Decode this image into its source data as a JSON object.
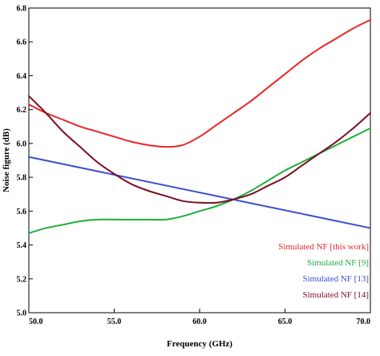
{
  "chart_data": {
    "type": "line",
    "xlabel": "Frequency (GHz)",
    "ylabel": "Noise figure (dB)",
    "xlim": [
      50.0,
      70.0
    ],
    "ylim": [
      5.0,
      6.8
    ],
    "x_ticks": [
      "50.0",
      "55.0",
      "60.0",
      "65.0",
      "70.0"
    ],
    "x_tick_values": [
      50,
      55,
      60,
      65,
      70
    ],
    "y_ticks": [
      "5.0",
      "5.2",
      "5.4",
      "5.6",
      "5.8",
      "6.0",
      "6.2",
      "6.4",
      "6.6",
      "6.8"
    ],
    "y_tick_values": [
      5.0,
      5.2,
      5.4,
      5.6,
      5.8,
      6.0,
      6.2,
      6.4,
      6.6,
      6.8
    ],
    "grid": false,
    "legend_position": "bottom-right",
    "series": [
      {
        "name": "Simulated NF [this work]",
        "color": "#e8262a",
        "x": [
          50,
          51,
          52,
          53,
          54,
          55,
          56,
          57,
          58,
          59,
          60,
          61,
          62,
          63,
          64,
          65,
          66,
          67,
          68,
          69,
          70
        ],
        "y": [
          6.23,
          6.18,
          6.14,
          6.1,
          6.07,
          6.04,
          6.01,
          5.99,
          5.98,
          5.99,
          6.04,
          6.11,
          6.18,
          6.25,
          6.33,
          6.41,
          6.49,
          6.56,
          6.62,
          6.68,
          6.73
        ]
      },
      {
        "name": "Simulated NF [9]",
        "color": "#1fae3c",
        "x": [
          50,
          51,
          52,
          53,
          54,
          55,
          56,
          57,
          58,
          59,
          60,
          61,
          62,
          63,
          64,
          65,
          66,
          67,
          68,
          69,
          70
        ],
        "y": [
          5.47,
          5.5,
          5.52,
          5.54,
          5.55,
          5.55,
          5.55,
          5.55,
          5.55,
          5.57,
          5.6,
          5.63,
          5.67,
          5.72,
          5.78,
          5.84,
          5.89,
          5.94,
          5.99,
          6.04,
          6.09
        ]
      },
      {
        "name": "Simulated NF [13]",
        "color": "#3a4fd0",
        "x": [
          50,
          70
        ],
        "y": [
          5.92,
          5.5
        ]
      },
      {
        "name": "Simulated NF [14]",
        "color": "#7a1020",
        "x": [
          50,
          51,
          52,
          53,
          54,
          55,
          56,
          57,
          58,
          59,
          60,
          61,
          62,
          63,
          64,
          65,
          66,
          67,
          68,
          69,
          70
        ],
        "y": [
          6.28,
          6.18,
          6.07,
          5.98,
          5.89,
          5.82,
          5.76,
          5.72,
          5.69,
          5.66,
          5.65,
          5.65,
          5.67,
          5.7,
          5.75,
          5.8,
          5.87,
          5.94,
          6.01,
          6.09,
          6.18
        ]
      }
    ]
  }
}
